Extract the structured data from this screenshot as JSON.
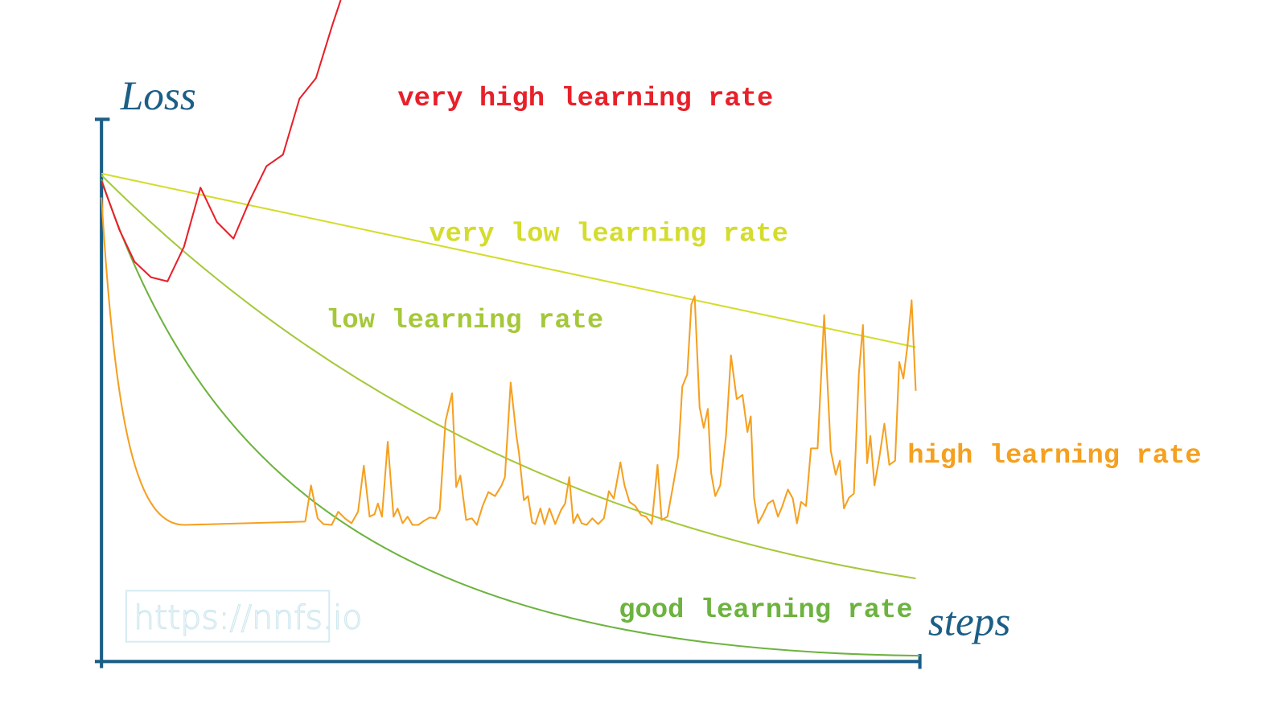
{
  "axes": {
    "y_label": "Loss",
    "x_label": "steps"
  },
  "curves": [
    {
      "label": "very high learning rate"
    },
    {
      "label": "very low learning rate"
    },
    {
      "label": "low learning rate"
    },
    {
      "label": "high learning rate"
    },
    {
      "label": "good learning rate"
    }
  ],
  "watermark": "https://nnfs.io"
}
